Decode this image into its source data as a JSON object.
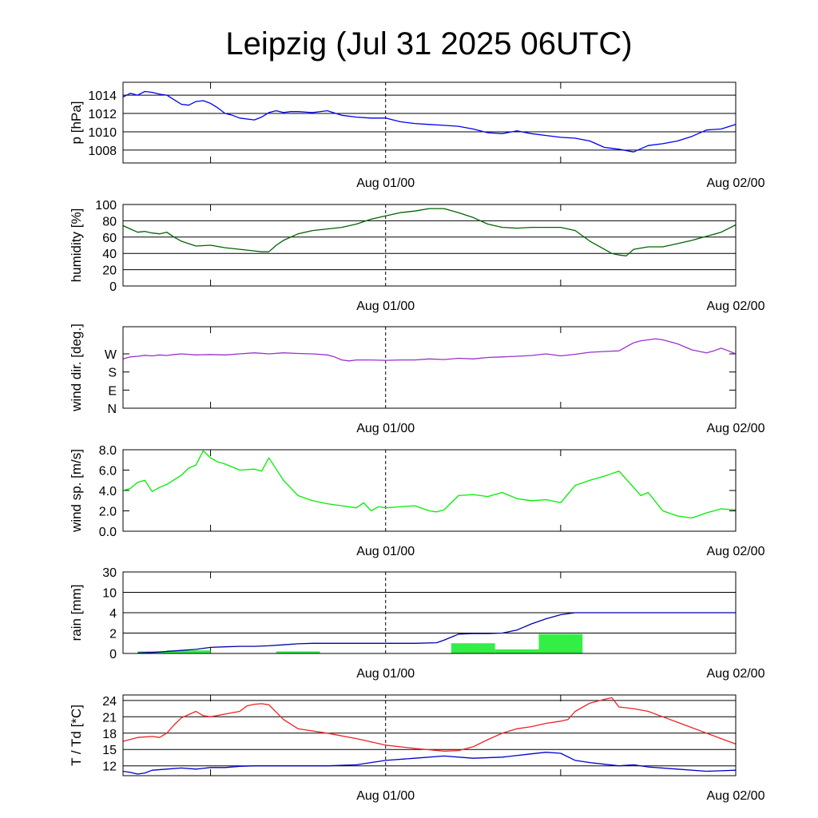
{
  "title": "Leipzig (Jul 31 2025 06UTC)",
  "x_axis": {
    "unit": "hours since Jul 31 2025 06UTC",
    "range": [
      0,
      42
    ],
    "minor_ticks": [
      6,
      30
    ],
    "labels": [
      {
        "x": 18,
        "text": "Aug 01/00"
      },
      {
        "x": 42,
        "text": "Aug 02/00"
      }
    ],
    "dashed_marker_x": 18
  },
  "chart_data": [
    {
      "type": "line",
      "id": "pressure",
      "ylabel": "p [hPa]",
      "ylim": [
        1006.6,
        1015.4
      ],
      "yticks": [
        1008,
        1010,
        1012,
        1014
      ],
      "ytick_labels": [
        "1008",
        "1010",
        "1012",
        "1014"
      ],
      "grid": true,
      "color": "#0000ee",
      "x": [
        0,
        0.5,
        1,
        1.5,
        2,
        2.5,
        3,
        3.5,
        4,
        4.5,
        5,
        5.5,
        6,
        6.5,
        7,
        7.5,
        8,
        9,
        9.5,
        10,
        10.5,
        11,
        11.5,
        12,
        13,
        14,
        15,
        16,
        17,
        18,
        19,
        20,
        21,
        22,
        23,
        24,
        25,
        26,
        27,
        28,
        29,
        30,
        31,
        32,
        33,
        34,
        35,
        36,
        37,
        38,
        39,
        40,
        41,
        42
      ],
      "y": [
        1013.8,
        1014.2,
        1014.0,
        1014.4,
        1014.3,
        1014.1,
        1014.0,
        1013.5,
        1013.0,
        1012.9,
        1013.3,
        1013.4,
        1013.1,
        1012.6,
        1012.0,
        1011.8,
        1011.5,
        1011.3,
        1011.6,
        1012.1,
        1012.3,
        1012.1,
        1012.2,
        1012.2,
        1012.1,
        1012.3,
        1011.8,
        1011.6,
        1011.5,
        1011.5,
        1011.1,
        1010.9,
        1010.8,
        1010.7,
        1010.6,
        1010.3,
        1009.9,
        1009.8,
        1010.1,
        1009.8,
        1009.6,
        1009.4,
        1009.3,
        1009.0,
        1008.3,
        1008.1,
        1007.8,
        1008.5,
        1008.7,
        1009.0,
        1009.5,
        1010.2,
        1010.3,
        1010.8
      ]
    },
    {
      "type": "line",
      "id": "humidity",
      "ylabel": "humidity [%]",
      "ylim": [
        0,
        100
      ],
      "yticks": [
        0,
        20,
        40,
        60,
        80,
        100
      ],
      "ytick_labels": [
        "0",
        "20",
        "40",
        "60",
        "80",
        "100"
      ],
      "grid": true,
      "color": "#006400",
      "x": [
        0,
        0.5,
        1,
        1.5,
        2,
        2.5,
        3,
        3.5,
        4,
        4.5,
        5,
        6,
        7,
        8,
        9,
        9.5,
        10,
        10.5,
        11,
        12,
        13,
        14,
        15,
        16,
        17,
        18,
        19,
        20,
        21,
        22,
        23,
        24,
        25,
        26,
        27,
        28,
        29,
        30,
        31,
        32,
        33,
        33.5,
        34,
        34.5,
        35,
        36,
        37,
        38,
        39,
        40,
        41,
        42
      ],
      "y": [
        74,
        70,
        66,
        67,
        65,
        64,
        66,
        60,
        55,
        52,
        49,
        50,
        47,
        45,
        43,
        42,
        42,
        50,
        56,
        64,
        68,
        70,
        72,
        76,
        82,
        86,
        90,
        92,
        95,
        95,
        90,
        84,
        76,
        72,
        71,
        72,
        72,
        72,
        68,
        55,
        45,
        40,
        38,
        37,
        45,
        48,
        48,
        52,
        56,
        61,
        66,
        75
      ]
    },
    {
      "type": "line",
      "id": "wind_direction",
      "ylabel": "wind dir. [deg.]",
      "ylim": [
        0,
        405
      ],
      "yticks": [
        0,
        90,
        180,
        270
      ],
      "ytick_labels": [
        "N",
        "E",
        "S",
        "W"
      ],
      "grid": false,
      "color": "#9932cc",
      "x": [
        0,
        0.5,
        1,
        1.5,
        2,
        2.5,
        3,
        3.5,
        4,
        5,
        6,
        7,
        8,
        9,
        10,
        11,
        12,
        13,
        14,
        14.5,
        15,
        15.5,
        16,
        17,
        18,
        19,
        20,
        21,
        22,
        23,
        24,
        25,
        26,
        27,
        28,
        29,
        30,
        31,
        32,
        33,
        34,
        35,
        35.5,
        36,
        36.5,
        37,
        37.5,
        38,
        39,
        40,
        40.5,
        41,
        41.5,
        42
      ],
      "y": [
        245,
        255,
        258,
        263,
        260,
        265,
        262,
        267,
        270,
        265,
        267,
        265,
        270,
        275,
        270,
        275,
        272,
        270,
        265,
        255,
        240,
        235,
        240,
        240,
        238,
        240,
        240,
        245,
        242,
        248,
        245,
        252,
        255,
        258,
        262,
        270,
        260,
        268,
        278,
        282,
        285,
        325,
        335,
        340,
        345,
        340,
        330,
        320,
        290,
        275,
        285,
        298,
        285,
        270
      ]
    },
    {
      "type": "line",
      "id": "wind_speed",
      "ylabel": "wind sp. [m/s]",
      "ylim": [
        0,
        8
      ],
      "yticks": [
        0,
        2,
        4,
        6,
        8
      ],
      "ytick_labels": [
        "0.0",
        "2.0",
        "4.0",
        "6.0",
        "8.0"
      ],
      "grid": false,
      "color": "#00ee00",
      "x": [
        0,
        0.5,
        1,
        1.5,
        2,
        2.5,
        3,
        4,
        4.5,
        5,
        5.5,
        6,
        6.5,
        7,
        8,
        9,
        9.5,
        10,
        11,
        12,
        13,
        14,
        15,
        16,
        16.5,
        17,
        17.5,
        18,
        19,
        20,
        21,
        21.5,
        22,
        23,
        24,
        25,
        26,
        27,
        28,
        29,
        30,
        31,
        32,
        33,
        34,
        35,
        35.5,
        36,
        37,
        38,
        39,
        40,
        41,
        42
      ],
      "y": [
        4.0,
        4.2,
        4.8,
        5.0,
        3.9,
        4.3,
        4.6,
        5.5,
        6.2,
        6.5,
        7.9,
        7.2,
        6.8,
        6.6,
        6.0,
        6.1,
        5.9,
        7.2,
        5.0,
        3.5,
        3.0,
        2.7,
        2.5,
        2.3,
        2.8,
        2.0,
        2.4,
        2.3,
        2.4,
        2.5,
        2.0,
        1.9,
        2.1,
        3.5,
        3.6,
        3.4,
        3.8,
        3.2,
        3.0,
        3.1,
        2.8,
        4.5,
        5.0,
        5.4,
        5.9,
        4.3,
        3.5,
        3.8,
        2.0,
        1.5,
        1.3,
        1.8,
        2.2,
        2.1
      ]
    },
    {
      "type": "bar+line",
      "id": "rain",
      "ylabel": "rain [mm]",
      "scale": "piecewise",
      "yticks": [
        0,
        2,
        4,
        10,
        30
      ],
      "ytick_labels": [
        "0",
        "2",
        "4",
        "10",
        "30"
      ],
      "grid": true,
      "bar_color": "#33ee44",
      "line_color": "#0000aa",
      "bars": [
        {
          "x0": 1,
          "x1": 3,
          "value": 0.2
        },
        {
          "x0": 3,
          "x1": 6,
          "value": 0.3
        },
        {
          "x0": 10.5,
          "x1": 13.5,
          "value": 0.2
        },
        {
          "x0": 22.5,
          "x1": 25.5,
          "value": 1.0
        },
        {
          "x0": 25.5,
          "x1": 28.5,
          "value": 0.4
        },
        {
          "x0": 28.5,
          "x1": 31.5,
          "value": 1.9
        }
      ],
      "accumulated": {
        "x": [
          1,
          2,
          3,
          4,
          5,
          5.5,
          6,
          7,
          8,
          9,
          10,
          11,
          12,
          13,
          18,
          20,
          21.5,
          22,
          22.5,
          23,
          24,
          25,
          26,
          27,
          28,
          29,
          30,
          31,
          32,
          33,
          42
        ],
        "y": [
          0.05,
          0.1,
          0.2,
          0.3,
          0.4,
          0.5,
          0.6,
          0.65,
          0.7,
          0.7,
          0.75,
          0.85,
          0.95,
          1.0,
          1.0,
          1.0,
          1.05,
          1.3,
          1.6,
          1.9,
          1.95,
          1.95,
          2.0,
          2.3,
          2.9,
          3.4,
          3.8,
          4.0,
          4.0,
          4.0,
          4.0
        ]
      }
    },
    {
      "type": "line",
      "id": "temperature_dewpoint",
      "ylabel": "T / Td [*C]",
      "ylim": [
        10.2,
        25.0
      ],
      "yticks": [
        12,
        15,
        18,
        21,
        24
      ],
      "ytick_labels": [
        "12",
        "15",
        "18",
        "21",
        "24"
      ],
      "grid": true,
      "series": [
        {
          "id": "T",
          "color": "#ee2222",
          "x": [
            0,
            1,
            2,
            2.5,
            3,
            3.5,
            4,
            5,
            5.5,
            6,
            7,
            8,
            8.5,
            9,
            9.5,
            10,
            11,
            12,
            14,
            16,
            18,
            20,
            22,
            23,
            24,
            25,
            26,
            27,
            28,
            29,
            30,
            30.5,
            31,
            32,
            33,
            33.5,
            34,
            35,
            36,
            37,
            38,
            39,
            40,
            41,
            42
          ],
          "y": [
            16.5,
            17.2,
            17.4,
            17.2,
            18.0,
            19.5,
            20.8,
            22.0,
            21.2,
            21.0,
            21.5,
            22.0,
            23.0,
            23.3,
            23.4,
            23.2,
            20.5,
            18.8,
            18.0,
            17.0,
            15.8,
            15.2,
            14.7,
            14.8,
            15.5,
            16.8,
            18.0,
            18.8,
            19.2,
            19.8,
            20.2,
            20.5,
            22.0,
            23.5,
            24.2,
            24.5,
            22.8,
            22.5,
            22.0,
            21.0,
            20.0,
            19.0,
            18.0,
            17.0,
            16.0
          ]
        },
        {
          "id": "Td",
          "color": "#0000cc",
          "x": [
            0,
            0.5,
            1,
            1.5,
            2,
            3,
            4,
            5,
            6,
            7,
            8,
            9,
            10,
            12,
            14,
            16,
            17,
            18,
            20,
            22,
            24,
            26,
            28,
            29,
            30,
            31,
            32,
            33,
            34,
            35,
            36,
            38,
            40,
            42
          ],
          "y": [
            11.0,
            10.8,
            10.5,
            10.7,
            11.2,
            11.4,
            11.6,
            11.4,
            11.7,
            11.7,
            11.9,
            12.0,
            12.0,
            12.0,
            12.0,
            12.2,
            12.6,
            13.0,
            13.4,
            13.8,
            13.4,
            13.6,
            14.2,
            14.5,
            14.3,
            13.0,
            12.6,
            12.3,
            12.0,
            12.2,
            11.8,
            11.4,
            11.0,
            11.2
          ]
        }
      ]
    }
  ]
}
